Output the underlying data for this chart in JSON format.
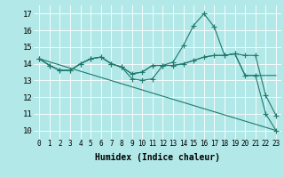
{
  "xlabel": "Humidex (Indice chaleur)",
  "background_color": "#b2e8e8",
  "grid_color": "#ffffff",
  "line_color": "#1f7a6e",
  "xlim": [
    -0.5,
    23.5
  ],
  "ylim": [
    9.5,
    17.5
  ],
  "xticks": [
    0,
    1,
    2,
    3,
    4,
    5,
    6,
    7,
    8,
    9,
    10,
    11,
    12,
    13,
    14,
    15,
    16,
    17,
    18,
    19,
    20,
    21,
    22,
    23
  ],
  "yticks": [
    10,
    11,
    12,
    13,
    14,
    15,
    16,
    17
  ],
  "series": [
    {
      "x": [
        0,
        1,
        2,
        3,
        4,
        5,
        6,
        7,
        8,
        9,
        10,
        11,
        12,
        13,
        14,
        15,
        16,
        17,
        18,
        19,
        20,
        21,
        22,
        23
      ],
      "y": [
        14.3,
        13.9,
        13.6,
        13.6,
        14.0,
        14.3,
        14.4,
        14.0,
        13.8,
        13.1,
        13.0,
        13.1,
        13.9,
        14.1,
        15.1,
        16.3,
        17.0,
        16.2,
        14.5,
        14.6,
        14.5,
        14.5,
        12.1,
        10.9
      ],
      "marker": true
    },
    {
      "x": [
        0,
        1,
        2,
        3,
        4,
        5,
        6,
        7,
        8,
        9,
        10,
        11,
        12,
        13,
        14,
        15,
        16,
        17,
        18,
        19,
        20,
        21,
        22,
        23
      ],
      "y": [
        14.3,
        13.9,
        13.6,
        13.6,
        14.0,
        14.3,
        14.4,
        14.0,
        13.8,
        13.4,
        13.5,
        13.9,
        13.9,
        13.9,
        14.0,
        14.2,
        14.4,
        14.5,
        14.5,
        14.6,
        13.3,
        13.3,
        11.0,
        10.0
      ],
      "marker": true
    },
    {
      "x": [
        0,
        1,
        2,
        3,
        4,
        5,
        6,
        7,
        8,
        9,
        10,
        11,
        12,
        13,
        14,
        15,
        16,
        17,
        18,
        19,
        20,
        21,
        22,
        23
      ],
      "y": [
        14.3,
        13.9,
        13.6,
        13.6,
        14.0,
        14.3,
        14.4,
        14.0,
        13.8,
        13.4,
        13.5,
        13.9,
        13.9,
        13.9,
        14.0,
        14.2,
        14.4,
        14.5,
        14.5,
        14.6,
        13.3,
        13.3,
        13.3,
        13.3
      ],
      "marker": false
    },
    {
      "x": [
        0,
        23
      ],
      "y": [
        14.3,
        10.0
      ],
      "marker": false
    }
  ]
}
